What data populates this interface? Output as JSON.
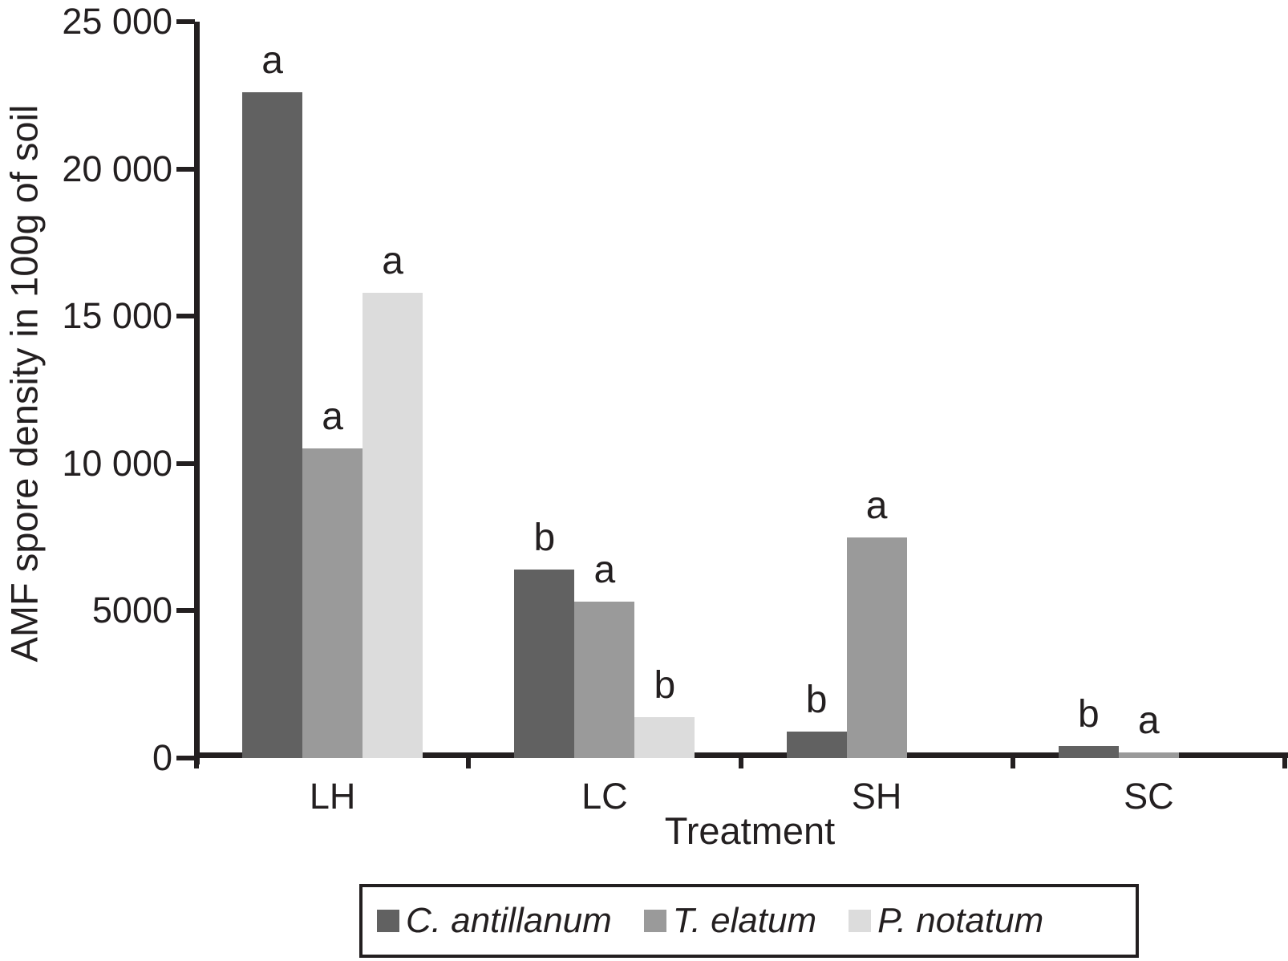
{
  "figure": {
    "background": "#ffffff",
    "axis_color": "#231f20"
  },
  "chart_data": {
    "type": "bar",
    "title": "",
    "xlabel": "Treatment",
    "ylabel": "AMF spore density in 100g of soil",
    "ylim": [
      0,
      25000
    ],
    "grid": false,
    "legend_position": "bottom",
    "y_ticks": [
      {
        "value": 25000,
        "label": "25 000"
      },
      {
        "value": 20000,
        "label": "20 000"
      },
      {
        "value": 15000,
        "label": "15 000"
      },
      {
        "value": 10000,
        "label": "10 000"
      },
      {
        "value": 5000,
        "label": "5000"
      },
      {
        "value": 0,
        "label": "0"
      }
    ],
    "categories": [
      "LH",
      "LC",
      "SH",
      "SC"
    ],
    "series": [
      {
        "name": "C. antillanum",
        "color": "#616161",
        "values": [
          22600,
          6400,
          900,
          400
        ],
        "sig_letters": [
          "a",
          "b",
          "b",
          "b"
        ]
      },
      {
        "name": "T. elatum",
        "color": "#9a9a9a",
        "values": [
          10500,
          5300,
          7500,
          200
        ],
        "sig_letters": [
          "a",
          "a",
          "a",
          "a"
        ]
      },
      {
        "name": "P. notatum",
        "color": "#dcdcdc",
        "values": [
          15800,
          1400,
          0,
          0
        ],
        "sig_letters": [
          "a",
          "b",
          "",
          ""
        ]
      }
    ]
  }
}
